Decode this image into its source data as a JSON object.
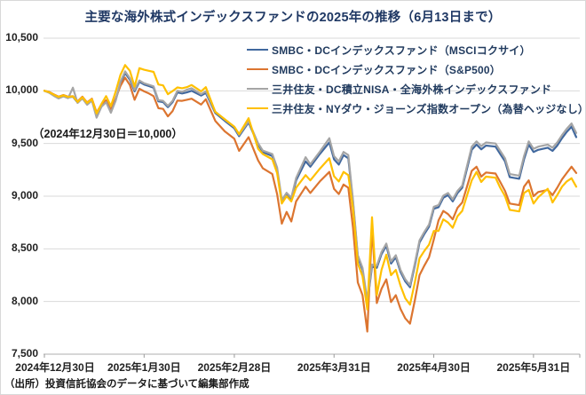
{
  "title": "主要な海外株式インデックスファンドの2025年の推移（6月13日まで）",
  "annotation": "（2024年12月30日＝10,000）",
  "source_note": "（出所）投資信託協会のデータに基づいて編集部作成",
  "colors": {
    "blue": "#41689E",
    "orange": "#DC7530",
    "gray": "#A5A5A5",
    "yellow": "#FFC000",
    "title_text": "#1F3864",
    "grid": "#D9D9D9",
    "axis": "#BFBFBF",
    "tick_text": "#222222"
  },
  "chart_data": {
    "type": "line",
    "title": "主要な海外株式インデックスファンドの2025年の推移（6月13日まで）",
    "note": "2024年12月30日＝10,000",
    "legend_position": "top-right",
    "grid": "horizontal",
    "ylim": [
      7500,
      10500
    ],
    "y_tick_labels": [
      "10,500",
      "10,000",
      "9,500",
      "9,000",
      "8,500",
      "8,000",
      "7,500"
    ],
    "y_tick_values": [
      10500,
      10000,
      9500,
      9000,
      8500,
      8000,
      7500
    ],
    "x_tick_labels": [
      "2024年12月30日",
      "2025年1月30日",
      "2025年2月28日",
      "2025年3月31日",
      "2025年4月30日",
      "2025年5月31日"
    ],
    "x_tick_days": [
      0,
      21,
      40,
      61,
      82,
      103
    ],
    "x_day_range": [
      0,
      112
    ],
    "days": [
      0,
      1,
      2,
      3,
      4,
      5,
      6,
      7,
      8,
      9,
      10,
      11,
      12,
      13,
      14,
      15,
      16,
      17,
      18,
      19,
      20,
      21,
      22,
      23,
      24,
      25,
      26,
      27,
      28,
      29,
      30,
      31,
      33,
      34,
      36,
      38,
      40,
      41,
      43,
      45,
      46,
      48,
      49,
      50,
      51,
      52,
      53,
      55,
      56,
      58,
      60,
      61,
      62,
      63,
      64,
      65,
      66,
      67,
      68,
      69,
      70,
      71,
      72,
      73,
      74,
      75,
      76,
      77,
      78,
      79,
      80,
      81,
      82,
      83,
      84,
      85,
      86,
      87,
      88,
      90,
      91,
      92,
      93,
      95,
      96,
      97,
      98,
      100,
      101,
      102,
      103,
      104,
      106,
      107,
      108,
      109,
      110,
      111,
      112
    ],
    "series": [
      {
        "name": "SMBC・DCインデックスファンド（MSCIコクサイ）",
        "color": "#41689E",
        "values": [
          10000,
          9985,
          9958,
          9935,
          9952,
          9938,
          9945,
          9890,
          9935,
          9875,
          9915,
          9770,
          9855,
          9900,
          9800,
          9910,
          10070,
          10170,
          10105,
          9995,
          10085,
          10060,
          10045,
          10030,
          9900,
          9893,
          9845,
          9893,
          9985,
          9975,
          9985,
          10000,
          9955,
          9980,
          9790,
          9715,
          9645,
          9570,
          9700,
          9490,
          9420,
          9380,
          9250,
          8940,
          9010,
          8960,
          9150,
          9330,
          9280,
          9400,
          9510,
          9350,
          9300,
          9390,
          9360,
          8940,
          8420,
          8300,
          7990,
          8330,
          8320,
          8450,
          8530,
          8360,
          8420,
          8280,
          8190,
          8135,
          8340,
          8560,
          8640,
          8710,
          8880,
          8895,
          8985,
          9010,
          8950,
          9030,
          9080,
          9440,
          9490,
          9445,
          9480,
          9470,
          9400,
          9330,
          9180,
          9165,
          9350,
          9490,
          9420,
          9440,
          9460,
          9430,
          9480,
          9550,
          9610,
          9660,
          9560
        ]
      },
      {
        "name": "SMBC・DCインデックスファンド（S&P500）",
        "color": "#DC7530",
        "values": [
          10000,
          9990,
          9966,
          9945,
          9960,
          9945,
          9950,
          9900,
          9945,
          9890,
          9925,
          9795,
          9870,
          9910,
          9820,
          9925,
          10045,
          10125,
          10055,
          9915,
          10020,
          9995,
          9975,
          9950,
          9835,
          9828,
          9758,
          9808,
          9908,
          9905,
          9915,
          9925,
          9870,
          9920,
          9715,
          9615,
          9545,
          9430,
          9560,
          9340,
          9265,
          9210,
          9020,
          8740,
          8850,
          8760,
          8950,
          9090,
          9030,
          9140,
          9230,
          9070,
          9020,
          9110,
          9080,
          8700,
          8180,
          8060,
          7715,
          8700,
          7985,
          8120,
          8210,
          7995,
          8060,
          7930,
          7840,
          7790,
          8010,
          8250,
          8340,
          8420,
          8590,
          8770,
          8860,
          8830,
          8780,
          8890,
          8940,
          9240,
          9280,
          9185,
          9225,
          9215,
          9135,
          9050,
          8930,
          8915,
          9090,
          9150,
          9000,
          9040,
          9060,
          9010,
          9080,
          9160,
          9220,
          9280,
          9220
        ]
      },
      {
        "name": "三井住友・DC積立NISA・全海外株インデックスファンド",
        "color": "#A5A5A5",
        "values": [
          10000,
          9982,
          9952,
          9928,
          9947,
          9930,
          10030,
          9885,
          9928,
          9868,
          9908,
          9745,
          9848,
          9892,
          9792,
          9905,
          10085,
          10185,
          10118,
          10008,
          10098,
          10072,
          10058,
          10042,
          9912,
          9905,
          9857,
          9905,
          10000,
          9990,
          10010,
          10025,
          9968,
          9995,
          9802,
          9727,
          9657,
          9582,
          9712,
          9502,
          9432,
          9400,
          9272,
          8965,
          9032,
          8985,
          9172,
          9370,
          9302,
          9422,
          9550,
          9380,
          9330,
          9420,
          9390,
          8960,
          8440,
          8320,
          8010,
          8350,
          8340,
          8470,
          8550,
          8380,
          8440,
          8300,
          8210,
          8155,
          8360,
          8580,
          8660,
          8730,
          8900,
          8915,
          9005,
          9030,
          8970,
          9050,
          9100,
          9470,
          9520,
          9475,
          9510,
          9500,
          9430,
          9360,
          9210,
          9195,
          9380,
          9520,
          9450,
          9470,
          9490,
          9460,
          9510,
          9580,
          9640,
          9690,
          9600
        ]
      },
      {
        "name": "三井住友・NYダウ・ジョーンズ指数オープン（為替ヘッジなし）",
        "color": "#FFC000",
        "values": [
          10000,
          9988,
          9963,
          9942,
          9957,
          9942,
          9948,
          9895,
          9940,
          9885,
          9920,
          9785,
          9875,
          9950,
          9855,
          9990,
          10150,
          10245,
          10190,
          10040,
          10215,
          10200,
          10190,
          10180,
          10060,
          10052,
          9968,
          9998,
          10032,
          10025,
          10035,
          10055,
          9995,
          10035,
          9800,
          9730,
          9660,
          9590,
          9740,
          9450,
          9400,
          9350,
          9220,
          8930,
          9000,
          8950,
          9080,
          9200,
          9150,
          9260,
          9360,
          9190,
          9140,
          9230,
          9200,
          8880,
          8360,
          8240,
          7925,
          8800,
          8060,
          8300,
          8445,
          8250,
          8300,
          8150,
          8030,
          7970,
          8180,
          8410,
          8480,
          8540,
          8670,
          8670,
          8780,
          8750,
          8700,
          8810,
          8860,
          9150,
          9230,
          9135,
          9185,
          9175,
          9080,
          9000,
          8870,
          8855,
          9030,
          9060,
          8930,
          8990,
          9070,
          8940,
          9010,
          9090,
          9140,
          9170,
          9090
        ]
      }
    ]
  }
}
